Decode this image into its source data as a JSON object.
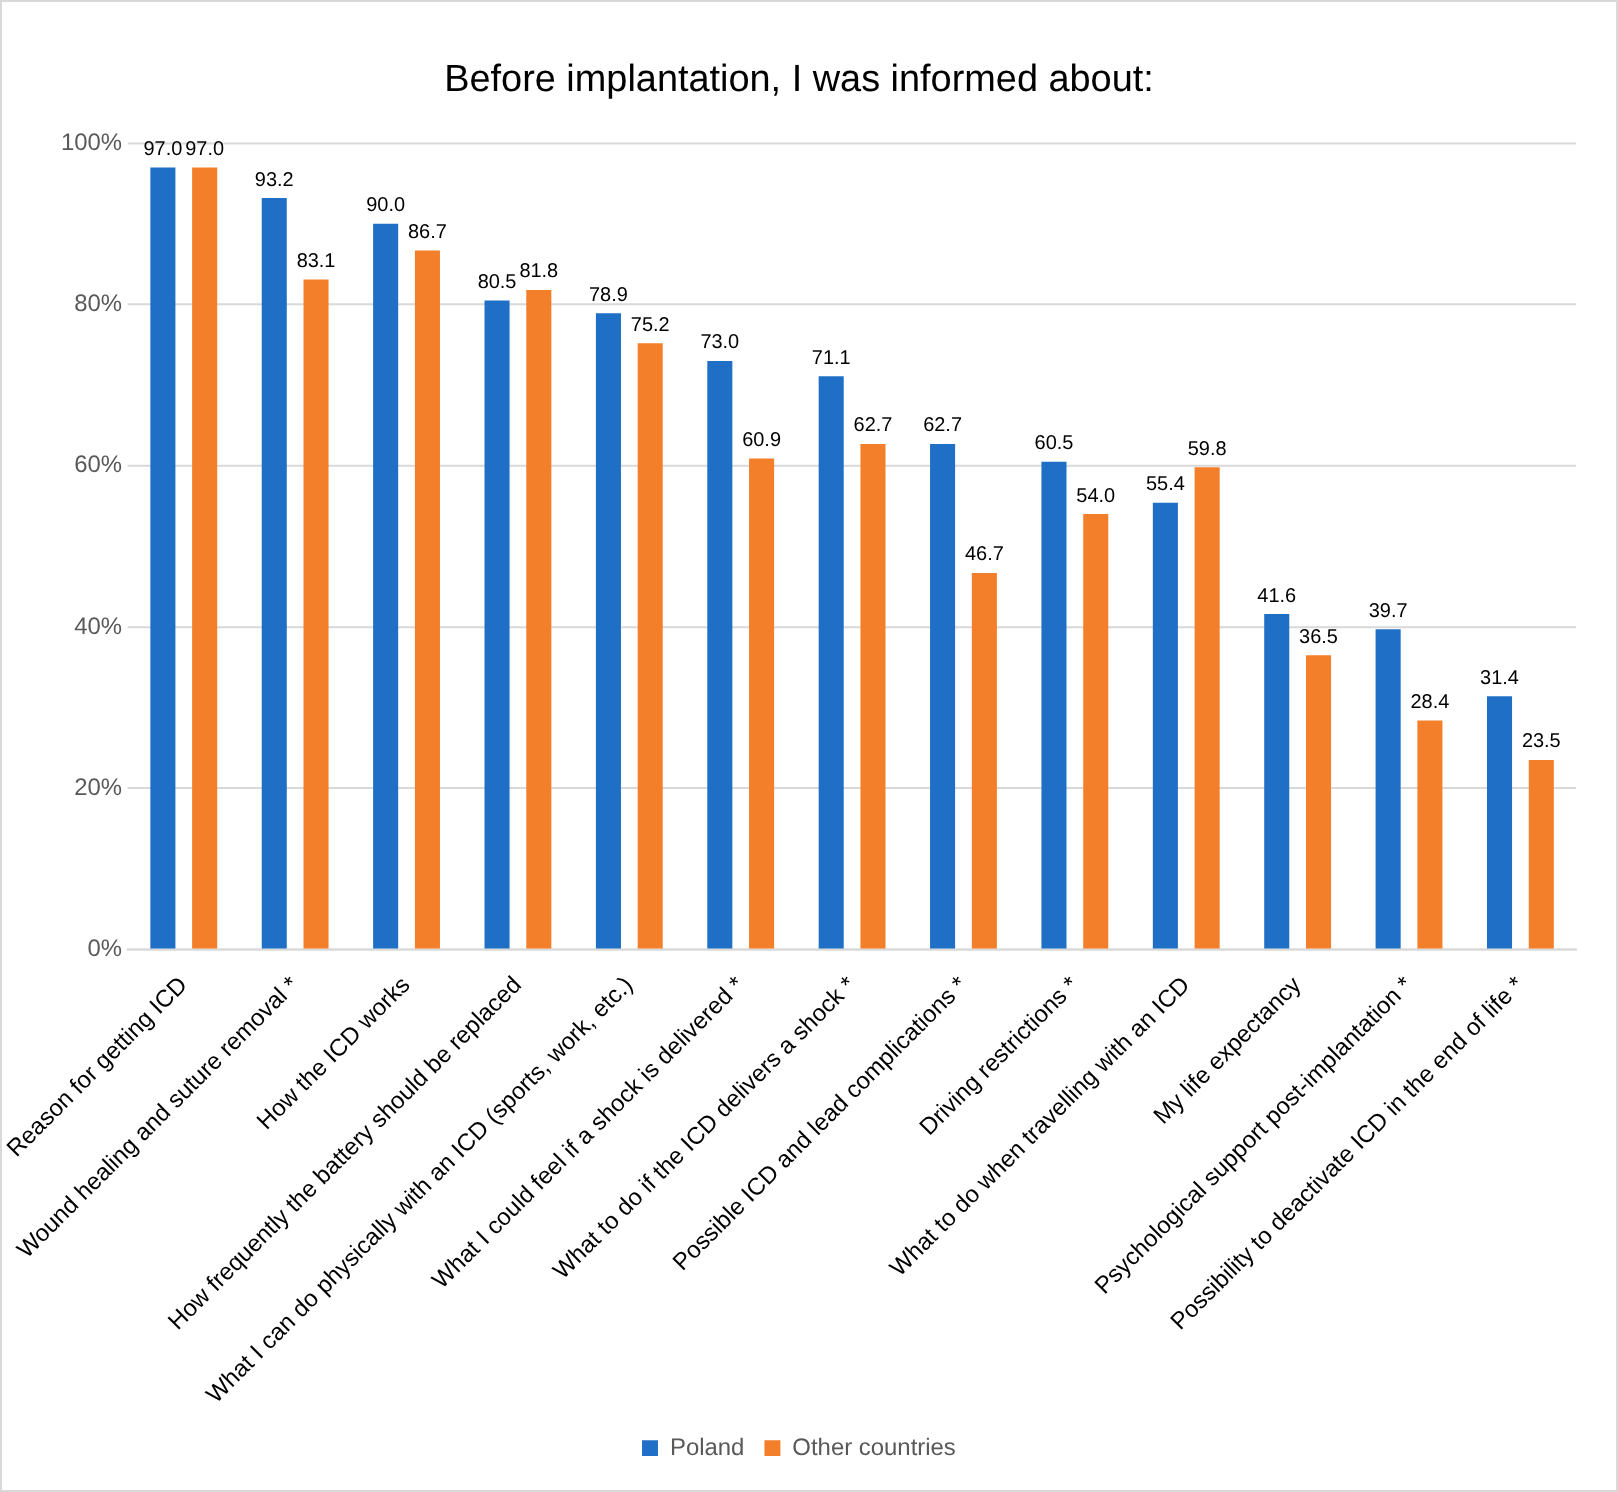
{
  "chart_data": {
    "type": "bar",
    "title": "Before implantation, I was informed about:",
    "categories": [
      "Reason for getting ICD",
      "Wound healing and suture removal *",
      "How the ICD works",
      "How frequently the battery should be replaced",
      "What I can do physically with an ICD (sports, work, etc.)",
      "What I could feel if a shock is delivered *",
      "What to do if the ICD delivers a shock *",
      "Possible ICD and lead complications *",
      "Driving restrictions *",
      "What to do when travelling with an ICD",
      "My life expectancy",
      "Psychological support post-implantation *",
      "Possibility to deactivate ICD in the end of life *"
    ],
    "series": [
      {
        "name": "Poland",
        "color": "#1f6fc6",
        "values": [
          97.0,
          93.2,
          90.0,
          80.5,
          78.9,
          73.0,
          71.1,
          62.7,
          60.5,
          55.4,
          41.6,
          39.7,
          31.4
        ],
        "value_labels": [
          "97.0",
          "93.2",
          "90.0",
          "80.5",
          "78.9",
          "73.0",
          "71.1",
          "62.7",
          "60.5",
          "55.4",
          "41.6",
          "39.7",
          "31.4"
        ]
      },
      {
        "name": "Other countries",
        "color": "#f47f2a",
        "values": [
          97.0,
          83.1,
          86.7,
          81.8,
          75.2,
          60.9,
          62.7,
          46.7,
          54.0,
          59.8,
          36.5,
          28.4,
          23.5
        ],
        "value_labels": [
          "97.0",
          "83.1",
          "86.7",
          "81.8",
          "75.2",
          "60.9",
          "62.7",
          "46.7",
          "54.0",
          "59.8",
          "36.5",
          "28.4",
          "23.5"
        ]
      }
    ],
    "ylim": [
      0,
      100
    ],
    "yticks": [
      {
        "value": 0,
        "label": "0%"
      },
      {
        "value": 20,
        "label": "20%"
      },
      {
        "value": 40,
        "label": "40%"
      },
      {
        "value": 60,
        "label": "60%"
      },
      {
        "value": 80,
        "label": "80%"
      },
      {
        "value": 100,
        "label": "100%"
      }
    ],
    "grid": "y",
    "legend": "bottom"
  }
}
